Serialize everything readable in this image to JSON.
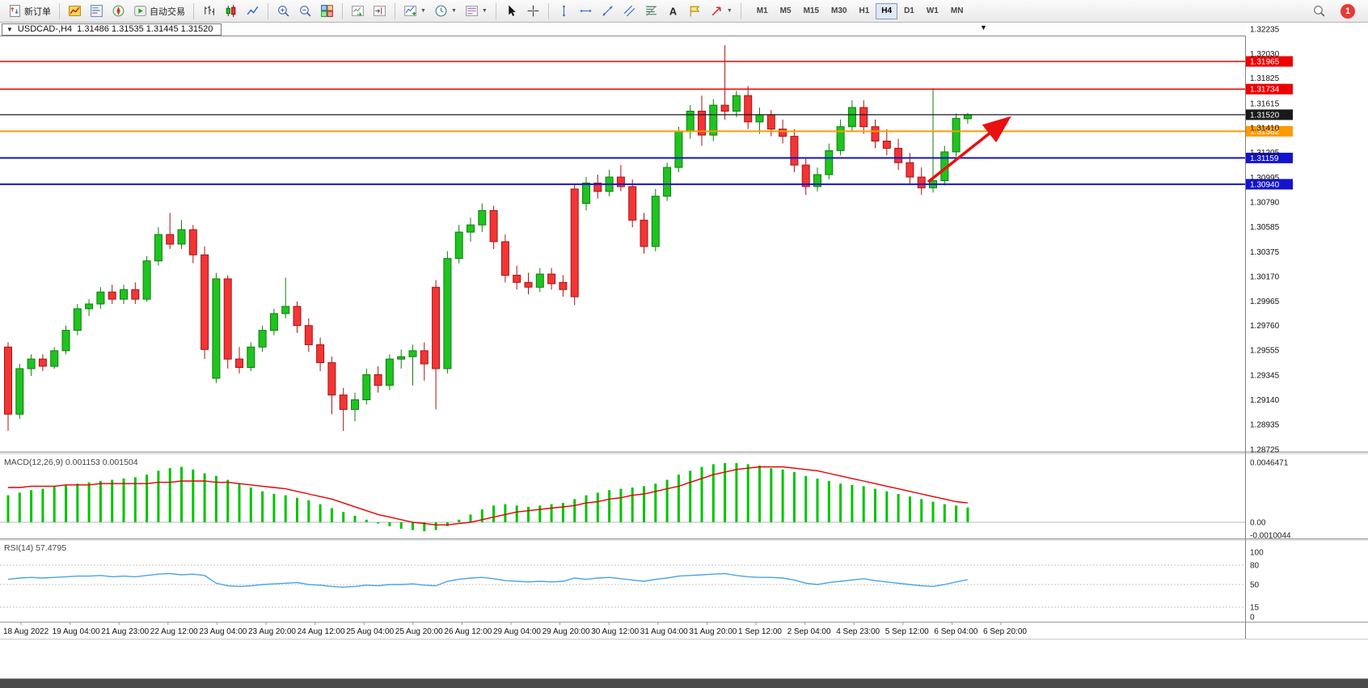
{
  "colors": {
    "background": "#ffffff",
    "candle_up_fill": "#1fc41f",
    "candle_up_border": "#0f7d0f",
    "candle_down_fill": "#f23535",
    "candle_down_border": "#a81414",
    "macd_histogram": "#00c400",
    "macd_signal": "#e80000",
    "rsi_line": "#4aa3e8",
    "arrow": "#e81010"
  },
  "toolbar": {
    "new_order_label": "新订单",
    "auto_trading_label": "自动交易",
    "notification_count": "1",
    "timeframes": [
      {
        "label": "M1",
        "active": false
      },
      {
        "label": "M5",
        "active": false
      },
      {
        "label": "M15",
        "active": false
      },
      {
        "label": "M30",
        "active": false
      },
      {
        "label": "H1",
        "active": false
      },
      {
        "label": "H4",
        "active": true
      },
      {
        "label": "D1",
        "active": false
      },
      {
        "label": "W1",
        "active": false
      },
      {
        "label": "MN",
        "active": false
      }
    ]
  },
  "chart_header": {
    "symbol_title": "USDCAD-,H4",
    "ohlc": "1.31486 1.31535 1.31445 1.31520"
  },
  "price_axis": {
    "labels": [
      "1.32235",
      "1.32030",
      "1.31825",
      "1.31615",
      "1.31410",
      "1.31205",
      "1.30995",
      "1.30790",
      "1.30585",
      "1.30375",
      "1.30170",
      "1.29965",
      "1.29760",
      "1.29555",
      "1.29345",
      "1.29140",
      "1.28935",
      "1.28725"
    ]
  },
  "time_axis": {
    "labels": [
      "18 Aug 2022",
      "19 Aug 04:00",
      "21 Aug 23:00",
      "22 Aug 12:00",
      "23 Aug 04:00",
      "23 Aug 20:00",
      "24 Aug 12:00",
      "25 Aug 04:00",
      "25 Aug 20:00",
      "26 Aug 12:00",
      "29 Aug 04:00",
      "29 Aug 20:00",
      "30 Aug 12:00",
      "31 Aug 04:00",
      "31 Aug 20:00",
      "1 Sep 12:00",
      "2 Sep 04:00",
      "4 Sep 23:00",
      "5 Sep 12:00",
      "6 Sep 04:00",
      "6 Sep 20:00"
    ]
  },
  "chart_data": {
    "type": "candlestick",
    "symbol": "USDCAD",
    "timeframe": "H4",
    "current_bar": {
      "open": 1.31486,
      "high": 1.31535,
      "low": 1.31445,
      "close": 1.3152
    },
    "price_range": [
      1.28725,
      1.32235
    ],
    "candles": [
      [
        1.2958,
        1.2962,
        1.2888,
        1.2902
      ],
      [
        1.2902,
        1.2944,
        1.2898,
        1.294
      ],
      [
        1.294,
        1.2952,
        1.2934,
        1.2948
      ],
      [
        1.2948,
        1.2952,
        1.2938,
        1.2942
      ],
      [
        1.2942,
        1.2958,
        1.294,
        1.2955
      ],
      [
        1.2955,
        1.2976,
        1.2952,
        1.2972
      ],
      [
        1.2972,
        1.2994,
        1.2968,
        1.299
      ],
      [
        1.299,
        1.2998,
        1.2984,
        1.2994
      ],
      [
        1.2994,
        1.3008,
        1.299,
        1.3004
      ],
      [
        1.3004,
        1.301,
        1.2994,
        1.2998
      ],
      [
        1.2998,
        1.301,
        1.2994,
        1.3006
      ],
      [
        1.3006,
        1.3012,
        1.2994,
        1.2998
      ],
      [
        1.2998,
        1.3034,
        1.2996,
        1.303
      ],
      [
        1.303,
        1.3058,
        1.3026,
        1.3052
      ],
      [
        1.3052,
        1.307,
        1.304,
        1.3044
      ],
      [
        1.3044,
        1.3064,
        1.304,
        1.3056
      ],
      [
        1.3056,
        1.306,
        1.3028,
        1.3035
      ],
      [
        1.3035,
        1.3042,
        1.2948,
        1.2956
      ],
      [
        1.2932,
        1.302,
        1.2928,
        1.3015
      ],
      [
        1.3015,
        1.3018,
        1.294,
        1.2948
      ],
      [
        1.2948,
        1.2958,
        1.2936,
        1.2941
      ],
      [
        1.2941,
        1.2962,
        1.2938,
        1.2958
      ],
      [
        1.2958,
        1.2976,
        1.2954,
        1.2972
      ],
      [
        1.2972,
        1.299,
        1.2968,
        1.2986
      ],
      [
        1.2986,
        1.3016,
        1.2982,
        1.2992
      ],
      [
        1.2992,
        1.2996,
        1.297,
        1.2976
      ],
      [
        1.2976,
        1.2982,
        1.2954,
        1.296
      ],
      [
        1.296,
        1.2966,
        1.2938,
        1.2945
      ],
      [
        1.2945,
        1.295,
        1.2902,
        1.2918
      ],
      [
        1.2918,
        1.2924,
        1.2888,
        1.2906
      ],
      [
        1.2906,
        1.292,
        1.2896,
        1.2914
      ],
      [
        1.2914,
        1.294,
        1.291,
        1.2935
      ],
      [
        1.2935,
        1.2942,
        1.292,
        1.2926
      ],
      [
        1.2926,
        1.2952,
        1.2922,
        1.2948
      ],
      [
        1.2948,
        1.2956,
        1.294,
        1.295
      ],
      [
        1.295,
        1.296,
        1.2926,
        1.2955
      ],
      [
        1.2955,
        1.2962,
        1.293,
        1.2944
      ],
      [
        1.3008,
        1.3014,
        1.2906,
        1.294
      ],
      [
        1.294,
        1.3038,
        1.2936,
        1.3032
      ],
      [
        1.3032,
        1.306,
        1.3028,
        1.3054
      ],
      [
        1.3054,
        1.3066,
        1.3046,
        1.306
      ],
      [
        1.306,
        1.3078,
        1.3054,
        1.3072
      ],
      [
        1.3072,
        1.3076,
        1.304,
        1.3046
      ],
      [
        1.3046,
        1.3052,
        1.3012,
        1.3018
      ],
      [
        1.3018,
        1.3026,
        1.3006,
        1.3012
      ],
      [
        1.3012,
        1.302,
        1.3002,
        1.3008
      ],
      [
        1.3008,
        1.3024,
        1.3004,
        1.3019
      ],
      [
        1.3019,
        1.3024,
        1.3006,
        1.3011
      ],
      [
        1.3012,
        1.3018,
        1.3,
        1.3006
      ],
      [
        1.309,
        1.3094,
        1.2993,
        1.3
      ],
      [
        1.3078,
        1.31,
        1.3072,
        1.3095
      ],
      [
        1.3095,
        1.3102,
        1.3082,
        1.3088
      ],
      [
        1.3088,
        1.3106,
        1.3084,
        1.31
      ],
      [
        1.31,
        1.311,
        1.3088,
        1.3092
      ],
      [
        1.3092,
        1.3098,
        1.3058,
        1.3064
      ],
      [
        1.3064,
        1.307,
        1.3036,
        1.3042
      ],
      [
        1.3042,
        1.309,
        1.3038,
        1.3084
      ],
      [
        1.3084,
        1.3112,
        1.308,
        1.3108
      ],
      [
        1.3108,
        1.3142,
        1.3104,
        1.3138
      ],
      [
        1.3138,
        1.316,
        1.3132,
        1.3155
      ],
      [
        1.3155,
        1.3168,
        1.3126,
        1.3135
      ],
      [
        1.3135,
        1.3165,
        1.313,
        1.316
      ],
      [
        1.316,
        1.321,
        1.3148,
        1.3155
      ],
      [
        1.3155,
        1.3172,
        1.315,
        1.3168
      ],
      [
        1.3168,
        1.3176,
        1.314,
        1.3146
      ],
      [
        1.3146,
        1.3158,
        1.3136,
        1.3152
      ],
      [
        1.3152,
        1.3156,
        1.3134,
        1.314
      ],
      [
        1.314,
        1.3148,
        1.3128,
        1.3134
      ],
      [
        1.3134,
        1.314,
        1.3104,
        1.311
      ],
      [
        1.311,
        1.3116,
        1.3085,
        1.3092
      ],
      [
        1.3092,
        1.3108,
        1.3088,
        1.3102
      ],
      [
        1.3102,
        1.3128,
        1.3098,
        1.3122
      ],
      [
        1.3122,
        1.3148,
        1.3118,
        1.3142
      ],
      [
        1.3142,
        1.3164,
        1.3138,
        1.3158
      ],
      [
        1.3158,
        1.3164,
        1.3136,
        1.3142
      ],
      [
        1.3142,
        1.3148,
        1.3124,
        1.313
      ],
      [
        1.313,
        1.314,
        1.3118,
        1.3124
      ],
      [
        1.3124,
        1.3132,
        1.3106,
        1.3112
      ],
      [
        1.3112,
        1.312,
        1.3094,
        1.31
      ],
      [
        1.31,
        1.3108,
        1.3085,
        1.3091
      ],
      [
        1.3091,
        1.3174,
        1.3087,
        1.3097
      ],
      [
        1.3097,
        1.3126,
        1.3093,
        1.3121
      ],
      [
        1.3121,
        1.3153,
        1.3117,
        1.3149
      ],
      [
        1.31486,
        1.31535,
        1.31445,
        1.3152
      ]
    ],
    "levels": [
      {
        "price": 1.31965,
        "label": "1.31965",
        "color": "#ee0000",
        "width": 1.5
      },
      {
        "price": 1.31734,
        "label": "1.31734",
        "color": "#ee0000",
        "width": 1.5
      },
      {
        "price": 1.3152,
        "label": "1.31520",
        "color": "#1a1a1a",
        "width": 1.2
      },
      {
        "price": 1.31382,
        "label": "1.31382",
        "color": "#ff9a00",
        "width": 2
      },
      {
        "price": 1.31159,
        "label": "1.31159",
        "color": "#1414cc",
        "width": 2
      },
      {
        "price": 1.3094,
        "label": "1.30940",
        "color": "#1414cc",
        "width": 2
      }
    ],
    "annotations": [
      {
        "type": "arrow",
        "from": [
          1148,
          197
        ],
        "to": [
          1244,
          121
        ],
        "color": "#e81010"
      }
    ],
    "indicators": {
      "macd": {
        "title": "MACD(12,26,9)",
        "values": [
          0.001153,
          0.001504
        ],
        "display_label": "MACD(12,26,9) 0.001153 0.001504",
        "scale_max": "0.0046471",
        "scale_zero": "0.00",
        "scale_min": "-0.0010044",
        "histogram": [
          0.0021,
          0.0023,
          0.0025,
          0.0026,
          0.0028,
          0.0029,
          0.003,
          0.0031,
          0.0032,
          0.0033,
          0.0034,
          0.0035,
          0.0037,
          0.004,
          0.0042,
          0.0043,
          0.0041,
          0.0038,
          0.0036,
          0.0033,
          0.003,
          0.0027,
          0.0024,
          0.0022,
          0.0021,
          0.0019,
          0.0017,
          0.0014,
          0.0011,
          0.0008,
          0.0005,
          0.0002,
          -0.0001,
          -0.0003,
          -0.0005,
          -0.0006,
          -0.0007,
          -0.0006,
          -0.0003,
          0.0002,
          0.0006,
          0.001,
          0.0013,
          0.0014,
          0.0013,
          0.0012,
          0.0013,
          0.0014,
          0.0015,
          0.0018,
          0.0021,
          0.0023,
          0.0025,
          0.0026,
          0.0027,
          0.0028,
          0.003,
          0.0033,
          0.0037,
          0.004,
          0.0043,
          0.0045,
          0.0046,
          0.0046,
          0.0045,
          0.0044,
          0.0042,
          0.0041,
          0.0039,
          0.0036,
          0.0034,
          0.0032,
          0.003,
          0.0029,
          0.0028,
          0.0026,
          0.0024,
          0.0022,
          0.002,
          0.0018,
          0.0016,
          0.0014,
          0.0013,
          0.00115
        ],
        "signal": [
          0.0027,
          0.0027,
          0.0028,
          0.0028,
          0.0028,
          0.0029,
          0.0029,
          0.0029,
          0.003,
          0.003,
          0.003,
          0.003,
          0.003,
          0.0031,
          0.0031,
          0.0032,
          0.0032,
          0.0032,
          0.0031,
          0.0031,
          0.003,
          0.0029,
          0.0028,
          0.0027,
          0.0026,
          0.0024,
          0.0022,
          0.002,
          0.0018,
          0.0015,
          0.0012,
          0.0009,
          0.0006,
          0.0004,
          0.0002,
          0,
          -0.0001,
          -0.0002,
          -0.0002,
          -0.0001,
          0,
          0.0002,
          0.0004,
          0.0006,
          0.0008,
          0.0009,
          0.001,
          0.0011,
          0.0012,
          0.0013,
          0.0015,
          0.0016,
          0.0018,
          0.0019,
          0.0021,
          0.0022,
          0.0024,
          0.0026,
          0.0028,
          0.0031,
          0.0034,
          0.0037,
          0.0039,
          0.0041,
          0.0042,
          0.0043,
          0.0043,
          0.0043,
          0.0042,
          0.0041,
          0.004,
          0.0038,
          0.0036,
          0.0034,
          0.0032,
          0.003,
          0.0028,
          0.0026,
          0.0024,
          0.0022,
          0.002,
          0.0018,
          0.0016,
          0.0015
        ]
      },
      "rsi": {
        "title": "RSI(14)",
        "value": 57.4795,
        "display_label": "RSI(14) 57.4795",
        "scale_labels": [
          "100",
          "80",
          "50",
          "15",
          "0"
        ],
        "levels_dashed": [
          80,
          50,
          15
        ],
        "values": [
          58,
          60,
          61,
          60,
          61,
          62,
          63,
          63,
          64,
          62,
          63,
          62,
          64,
          66,
          67,
          65,
          66,
          64,
          52,
          48,
          47,
          48,
          50,
          51,
          52,
          53,
          50,
          49,
          47,
          46,
          47,
          49,
          48,
          50,
          50,
          51,
          49,
          48,
          55,
          58,
          60,
          61,
          59,
          56,
          55,
          54,
          55,
          54,
          55,
          60,
          58,
          60,
          61,
          59,
          57,
          55,
          58,
          60,
          63,
          64,
          65,
          66,
          67,
          64,
          62,
          61,
          61,
          60,
          57,
          52,
          50,
          53,
          55,
          57,
          59,
          56,
          54,
          52,
          50,
          48,
          47,
          50,
          54,
          57.5
        ]
      }
    }
  }
}
